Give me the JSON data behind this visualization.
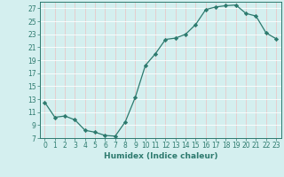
{
  "x": [
    0,
    1,
    2,
    3,
    4,
    5,
    6,
    7,
    8,
    9,
    10,
    11,
    12,
    13,
    14,
    15,
    16,
    17,
    18,
    19,
    20,
    21,
    22,
    23
  ],
  "y": [
    12.5,
    10.2,
    10.4,
    9.8,
    8.2,
    7.9,
    7.4,
    7.3,
    9.5,
    13.3,
    18.2,
    20.0,
    22.2,
    22.4,
    23.0,
    24.5,
    26.8,
    27.2,
    27.4,
    27.5,
    26.2,
    25.8,
    23.2,
    22.3
  ],
  "xlabel": "Humidex (Indice chaleur)",
  "line_color": "#2d7a6e",
  "marker": "D",
  "marker_size": 2.2,
  "bg_color": "#d4efef",
  "grid_color": "#c8e8e8",
  "text_color": "#2d7a6e",
  "ylim": [
    7,
    28
  ],
  "xlim": [
    -0.5,
    23.5
  ],
  "yticks": [
    7,
    9,
    11,
    13,
    15,
    17,
    19,
    21,
    23,
    25,
    27
  ],
  "xticks": [
    0,
    1,
    2,
    3,
    4,
    5,
    6,
    7,
    8,
    9,
    10,
    11,
    12,
    13,
    14,
    15,
    16,
    17,
    18,
    19,
    20,
    21,
    22,
    23
  ]
}
